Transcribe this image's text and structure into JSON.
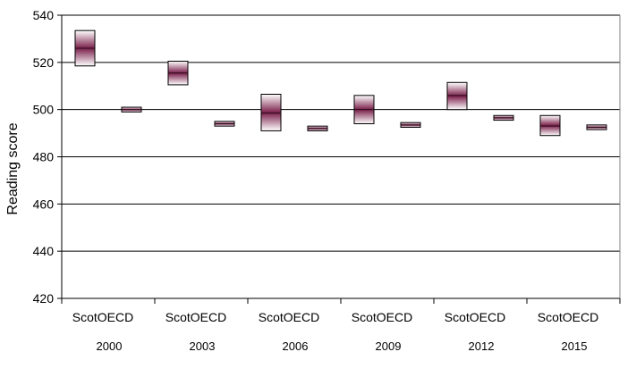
{
  "chart_data": {
    "type": "range-box",
    "ylabel": "Reading score",
    "ylim": [
      420,
      540
    ],
    "yticks": [
      420,
      440,
      460,
      480,
      500,
      520,
      540
    ],
    "grid": true,
    "groups": [
      {
        "year": "2000",
        "entries": [
          {
            "label": "Scot",
            "low": 518.5,
            "mean": 526,
            "high": 533.5
          },
          {
            "label": "OECD",
            "low": 499,
            "mean": 500,
            "high": 501
          }
        ]
      },
      {
        "year": "2003",
        "entries": [
          {
            "label": "Scot",
            "low": 510.5,
            "mean": 515.5,
            "high": 520.5
          },
          {
            "label": "OECD",
            "low": 493,
            "mean": 494,
            "high": 495
          }
        ]
      },
      {
        "year": "2006",
        "entries": [
          {
            "label": "Scot",
            "low": 491,
            "mean": 498.5,
            "high": 506.5
          },
          {
            "label": "OECD",
            "low": 491,
            "mean": 492,
            "high": 493
          }
        ]
      },
      {
        "year": "2009",
        "entries": [
          {
            "label": "Scot",
            "low": 494,
            "mean": 500,
            "high": 506
          },
          {
            "label": "OECD",
            "low": 492.5,
            "mean": 493.5,
            "high": 494.5
          }
        ]
      },
      {
        "year": "2012",
        "entries": [
          {
            "label": "Scot",
            "low": 500,
            "mean": 506,
            "high": 511.5
          },
          {
            "label": "OECD",
            "low": 495.5,
            "mean": 496.5,
            "high": 497.5
          }
        ]
      },
      {
        "year": "2015",
        "entries": [
          {
            "label": "Scot",
            "low": 489,
            "mean": 493,
            "high": 497.5
          },
          {
            "label": "OECD",
            "low": 491.5,
            "mean": 492.5,
            "high": 493.5
          }
        ]
      }
    ],
    "colors": {
      "box_center": "#7a1f4a",
      "box_edge": "#ffffff",
      "box_stroke": "#000000",
      "grid": "#000000"
    }
  }
}
